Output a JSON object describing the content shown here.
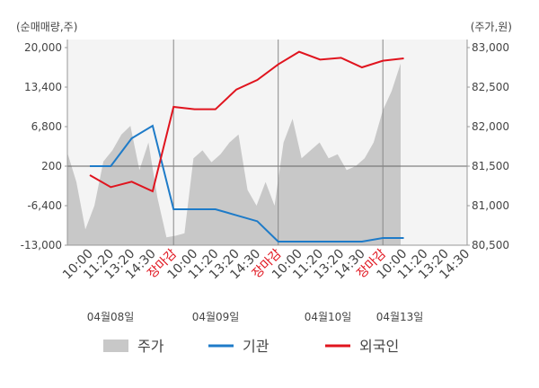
{
  "chart_data": {
    "type": "line",
    "y_label": "(순매매량,주)",
    "y2_label": "(주가,원)",
    "categories": [
      "10:00",
      "11:20",
      "13:20",
      "14:30",
      "장마감",
      "10:00",
      "11:20",
      "13:20",
      "14:30",
      "장마감",
      "10:00",
      "11:20",
      "13:20",
      "14:30",
      "장마감",
      "10:00",
      "11:20",
      "13:20",
      "14:30"
    ],
    "date_labels": [
      "04월08일",
      "04월09일",
      "04월10일",
      "04월13일"
    ],
    "ylim": [
      -13000,
      20000
    ],
    "yticks": [
      {
        "value": 20000,
        "label": "20,000"
      },
      {
        "value": 13400,
        "label": "13,400"
      },
      {
        "value": 6800,
        "label": "6,800"
      },
      200,
      {
        "value": -6400,
        "label": "-6,400"
      },
      {
        "value": -13000,
        "label": "-13,000"
      }
    ],
    "y2lim": [
      80500,
      83000
    ],
    "y2ticks": [
      {
        "value": 83000,
        "label": "83,000"
      },
      {
        "value": 82500,
        "label": "82,500"
      },
      {
        "value": 82000,
        "label": "82,000"
      },
      {
        "value": 81500,
        "label": "81,500"
      },
      {
        "value": 81000,
        "label": "81,000"
      },
      {
        "value": 80500,
        "label": "80,500"
      }
    ],
    "price": {
      "name": "주가",
      "color": "#c8c8c8",
      "axis": "y2",
      "values": [
        81670,
        81300,
        80700,
        81000,
        81560,
        81700,
        81900,
        82010,
        81450,
        81800,
        81100,
        80600,
        80620,
        80650,
        81600,
        81700,
        81550,
        81650,
        81800,
        81900,
        81200,
        81000,
        81300,
        81000,
        81800,
        82100,
        81600,
        81700,
        81800,
        81600,
        81650,
        81450,
        81500,
        81600,
        81800,
        82200,
        82450,
        82800
      ]
    },
    "series": [
      {
        "name": "기관",
        "color": "#1e7bc8",
        "values": [
          200,
          200,
          4850,
          6950,
          -7000,
          -7000,
          -7000,
          -8000,
          -9000,
          -12400,
          -12400,
          -12400,
          -12400,
          -12400,
          -11800,
          -11800,
          null,
          null,
          null
        ]
      },
      {
        "name": "외국인",
        "color": "#e0141e",
        "values": [
          -1300,
          -3300,
          -2400,
          -4000,
          10100,
          9700,
          9700,
          13000,
          14600,
          17200,
          19300,
          18000,
          18300,
          16700,
          17800,
          18200,
          null,
          null,
          null
        ]
      }
    ]
  }
}
